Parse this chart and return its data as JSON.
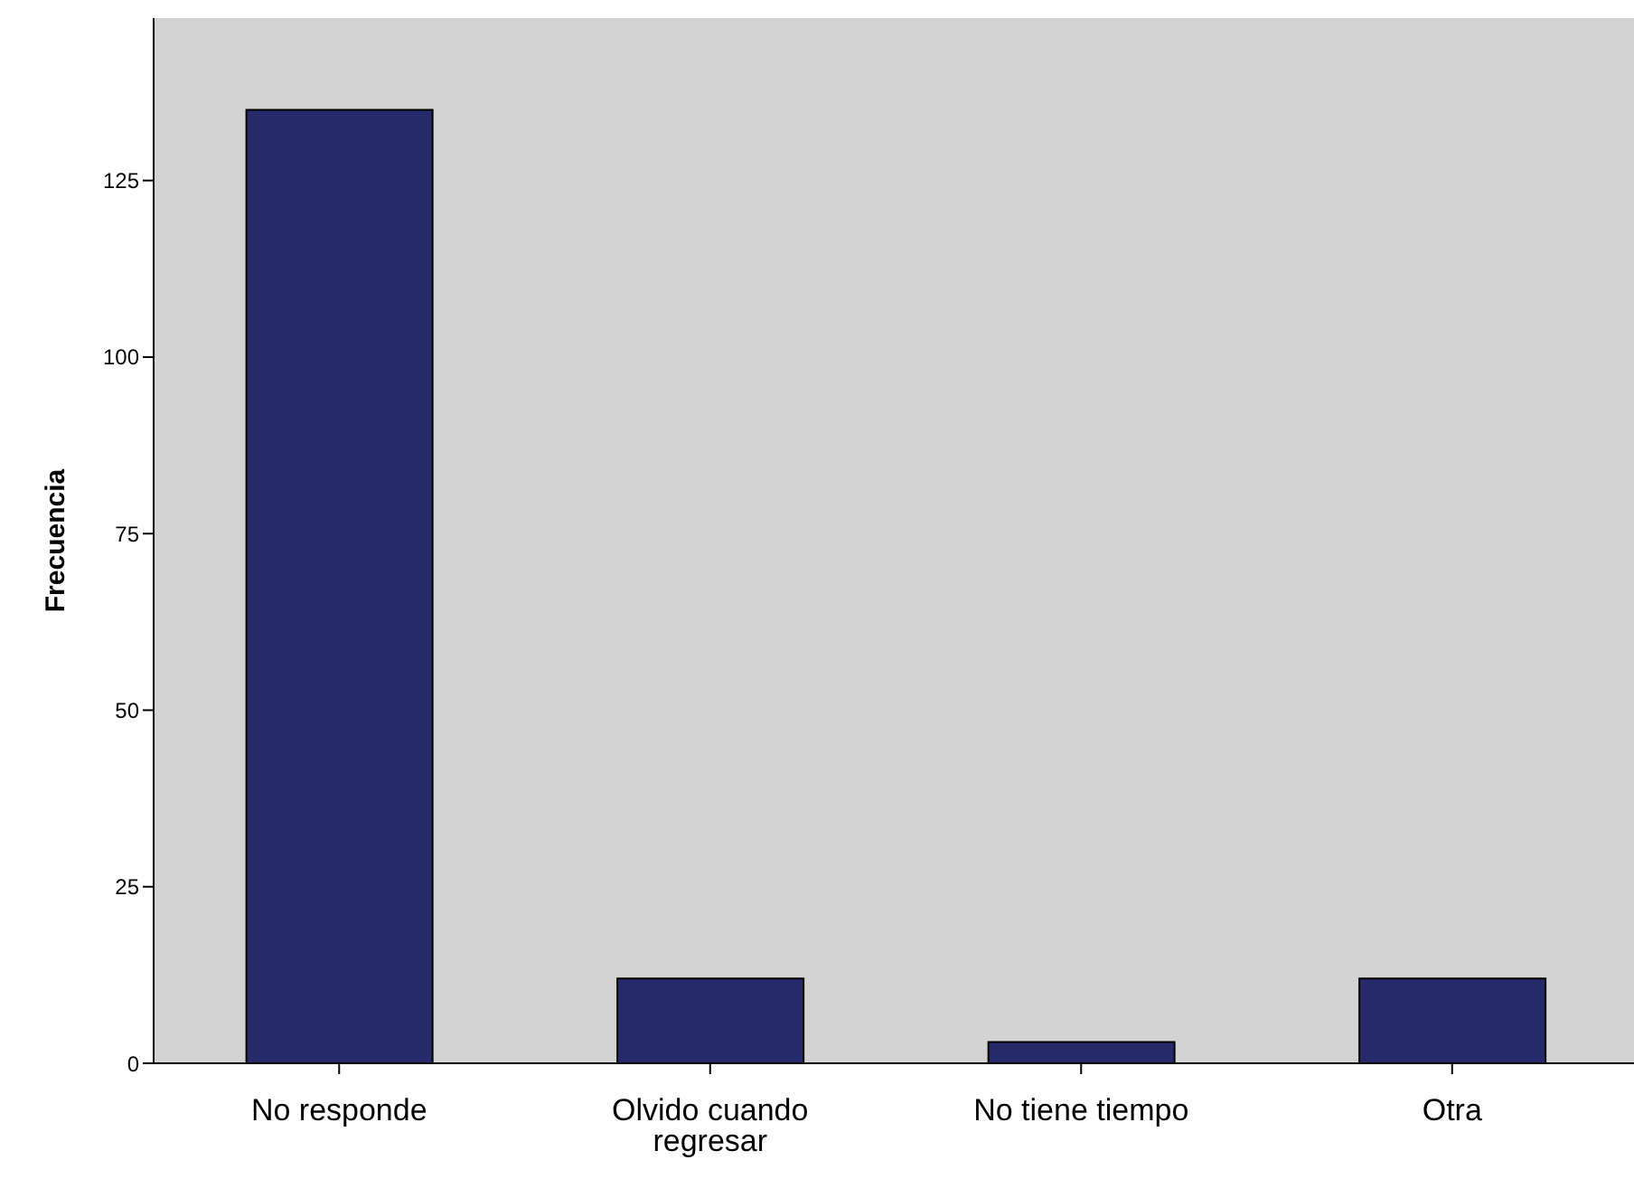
{
  "chart_data": {
    "type": "bar",
    "ylabel": "Frecuencia",
    "categories": [
      "No responde",
      "Olvido cuando regresar",
      "No tiene tiempo",
      "Otra"
    ],
    "values": [
      135,
      12,
      3,
      12
    ],
    "color": "#262a6b",
    "ylim": [
      0,
      148
    ],
    "yticks": [
      0,
      25,
      50,
      75,
      100,
      125
    ],
    "grid": false
  }
}
